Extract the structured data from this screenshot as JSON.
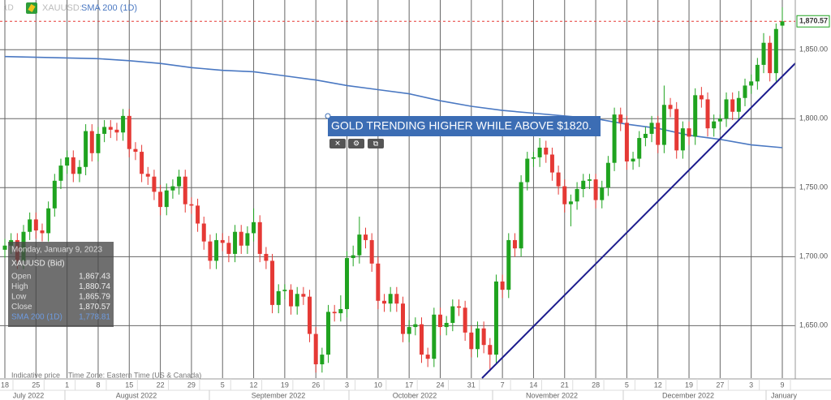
{
  "chart_data": {
    "type": "candlestick",
    "header": {
      "interval": "1D",
      "symbol": "XAUUSD:",
      "indicator": "SMA 200 (1D)"
    },
    "annotation": "GOLD TRENDING HIGHER WHILE ABOVE $1820.",
    "up_color": "#1fa31f",
    "down_color": "#e53935",
    "ylim": [
      1612,
      1886
    ],
    "yticks": [
      {
        "value": 1650,
        "label": "1,650.00"
      },
      {
        "value": 1700,
        "label": "1,700.00"
      },
      {
        "value": 1750,
        "label": "1,750.00"
      },
      {
        "value": 1800,
        "label": "1,800.00"
      },
      {
        "value": 1850,
        "label": "1,850.00"
      }
    ],
    "grid": true,
    "x_tick_labels": [
      "18",
      "25",
      "1",
      "8",
      "15",
      "22",
      "29",
      "5",
      "12",
      "19",
      "26",
      "3",
      "10",
      "17",
      "24",
      "31",
      "7",
      "14",
      "21",
      "28",
      "5",
      "12",
      "19",
      "27",
      "3",
      "9"
    ],
    "months": [
      "July 2022",
      "August 2022",
      "September 2022",
      "October 2022",
      "November 2022",
      "December 2022",
      "January"
    ],
    "candles": [
      [
        1705,
        1713,
        1699,
        1708
      ],
      [
        1708,
        1717,
        1702,
        1712
      ],
      [
        1712,
        1717,
        1691,
        1697
      ],
      [
        1697,
        1723,
        1691,
        1718
      ],
      [
        1718,
        1732,
        1712,
        1727
      ],
      [
        1727,
        1732,
        1713,
        1719
      ],
      [
        1719,
        1724,
        1711,
        1717
      ],
      [
        1717,
        1740,
        1711,
        1735
      ],
      [
        1735,
        1760,
        1729,
        1755
      ],
      [
        1755,
        1771,
        1749,
        1766
      ],
      [
        1766,
        1777,
        1760,
        1772
      ],
      [
        1772,
        1777,
        1754,
        1760
      ],
      [
        1760,
        1770,
        1754,
        1765
      ],
      [
        1765,
        1796,
        1759,
        1791
      ],
      [
        1791,
        1796,
        1769,
        1775
      ],
      [
        1775,
        1794,
        1769,
        1789
      ],
      [
        1789,
        1799,
        1783,
        1794
      ],
      [
        1794,
        1799,
        1786,
        1792
      ],
      [
        1792,
        1797,
        1784,
        1790
      ],
      [
        1790,
        1807,
        1784,
        1802
      ],
      [
        1802,
        1807,
        1772,
        1778
      ],
      [
        1778,
        1783,
        1770,
        1776
      ],
      [
        1776,
        1781,
        1754,
        1760
      ],
      [
        1760,
        1765,
        1752,
        1758
      ],
      [
        1758,
        1763,
        1741,
        1747
      ],
      [
        1747,
        1752,
        1730,
        1736
      ],
      [
        1736,
        1753,
        1730,
        1748
      ],
      [
        1748,
        1756,
        1742,
        1751
      ],
      [
        1751,
        1763,
        1745,
        1758
      ],
      [
        1758,
        1763,
        1732,
        1738
      ],
      [
        1738,
        1743,
        1731,
        1737
      ],
      [
        1737,
        1742,
        1718,
        1724
      ],
      [
        1724,
        1729,
        1705,
        1711
      ],
      [
        1711,
        1716,
        1691,
        1697
      ],
      [
        1697,
        1717,
        1691,
        1712
      ],
      [
        1712,
        1717,
        1704,
        1710
      ],
      [
        1710,
        1715,
        1696,
        1702
      ],
      [
        1702,
        1723,
        1696,
        1718
      ],
      [
        1718,
        1723,
        1702,
        1708
      ],
      [
        1708,
        1722,
        1702,
        1717
      ],
      [
        1717,
        1735,
        1711,
        1725
      ],
      [
        1725,
        1730,
        1696,
        1702
      ],
      [
        1702,
        1707,
        1691,
        1697
      ],
      [
        1697,
        1702,
        1659,
        1665
      ],
      [
        1665,
        1680,
        1659,
        1675
      ],
      [
        1675,
        1680,
        1669,
        1676
      ],
      [
        1676,
        1680,
        1658,
        1664
      ],
      [
        1664,
        1678,
        1658,
        1673
      ],
      [
        1673,
        1678,
        1665,
        1671
      ],
      [
        1671,
        1676,
        1638,
        1644
      ],
      [
        1644,
        1649,
        1616,
        1622
      ],
      [
        1622,
        1634,
        1616,
        1629
      ],
      [
        1629,
        1665,
        1623,
        1660
      ],
      [
        1660,
        1665,
        1653,
        1659
      ],
      [
        1659,
        1672,
        1653,
        1662
      ],
      [
        1662,
        1704,
        1656,
        1699
      ],
      [
        1699,
        1708,
        1693,
        1701
      ],
      [
        1701,
        1729,
        1695,
        1716
      ],
      [
        1716,
        1721,
        1706,
        1712
      ],
      [
        1712,
        1717,
        1689,
        1695
      ],
      [
        1695,
        1700,
        1662,
        1668
      ],
      [
        1668,
        1673,
        1660,
        1666
      ],
      [
        1666,
        1678,
        1660,
        1673
      ],
      [
        1673,
        1678,
        1660,
        1666
      ],
      [
        1666,
        1671,
        1638,
        1644
      ],
      [
        1644,
        1654,
        1638,
        1649
      ],
      [
        1649,
        1656,
        1643,
        1651
      ],
      [
        1651,
        1656,
        1623,
        1629
      ],
      [
        1629,
        1634,
        1620,
        1626
      ],
      [
        1626,
        1663,
        1620,
        1658
      ],
      [
        1658,
        1663,
        1643,
        1649
      ],
      [
        1649,
        1657,
        1643,
        1652
      ],
      [
        1652,
        1669,
        1646,
        1664
      ],
      [
        1664,
        1669,
        1657,
        1663
      ],
      [
        1663,
        1668,
        1639,
        1645
      ],
      [
        1645,
        1650,
        1627,
        1633
      ],
      [
        1633,
        1653,
        1627,
        1648
      ],
      [
        1648,
        1653,
        1630,
        1636
      ],
      [
        1636,
        1641,
        1617,
        1629
      ],
      [
        1629,
        1687,
        1623,
        1682
      ],
      [
        1682,
        1687,
        1670,
        1676
      ],
      [
        1676,
        1717,
        1670,
        1712
      ],
      [
        1712,
        1717,
        1700,
        1706
      ],
      [
        1706,
        1759,
        1700,
        1754
      ],
      [
        1754,
        1776,
        1748,
        1771
      ],
      [
        1771,
        1776,
        1765,
        1772
      ],
      [
        1772,
        1786,
        1765,
        1779
      ],
      [
        1779,
        1784,
        1768,
        1774
      ],
      [
        1774,
        1779,
        1755,
        1761
      ],
      [
        1761,
        1766,
        1745,
        1751
      ],
      [
        1751,
        1756,
        1732,
        1738
      ],
      [
        1738,
        1745,
        1722,
        1740
      ],
      [
        1740,
        1754,
        1734,
        1749
      ],
      [
        1749,
        1760,
        1743,
        1755
      ],
      [
        1755,
        1760,
        1749,
        1756
      ],
      [
        1756,
        1760,
        1735,
        1741
      ],
      [
        1741,
        1755,
        1735,
        1750
      ],
      [
        1750,
        1773,
        1744,
        1768
      ],
      [
        1768,
        1808,
        1762,
        1803
      ],
      [
        1803,
        1808,
        1791,
        1797
      ],
      [
        1797,
        1802,
        1763,
        1769
      ],
      [
        1769,
        1776,
        1763,
        1771
      ],
      [
        1771,
        1791,
        1765,
        1786
      ],
      [
        1786,
        1794,
        1780,
        1789
      ],
      [
        1789,
        1802,
        1783,
        1797
      ],
      [
        1797,
        1802,
        1775,
        1781
      ],
      [
        1781,
        1824,
        1775,
        1810
      ],
      [
        1810,
        1815,
        1801,
        1807
      ],
      [
        1807,
        1812,
        1771,
        1777
      ],
      [
        1777,
        1798,
        1771,
        1793
      ],
      [
        1793,
        1798,
        1781,
        1787
      ],
      [
        1787,
        1822,
        1781,
        1817
      ],
      [
        1817,
        1823,
        1808,
        1814
      ],
      [
        1814,
        1819,
        1787,
        1793
      ],
      [
        1793,
        1803,
        1787,
        1798
      ],
      [
        1798,
        1803,
        1792,
        1800
      ],
      [
        1800,
        1819,
        1794,
        1814
      ],
      [
        1814,
        1819,
        1799,
        1805
      ],
      [
        1805,
        1820,
        1799,
        1815
      ],
      [
        1815,
        1829,
        1809,
        1824
      ],
      [
        1824,
        1832,
        1818,
        1827
      ],
      [
        1827,
        1844,
        1821,
        1839
      ],
      [
        1839,
        1862,
        1833,
        1855
      ],
      [
        1855,
        1860,
        1827,
        1833
      ],
      [
        1833,
        1869,
        1827,
        1865
      ],
      [
        1867.43,
        1880.74,
        1865.79,
        1870.57
      ]
    ],
    "last_price_label": "1,870.57",
    "sma": {
      "name": "SMA 200 (1D)",
      "color": "#4a78c2",
      "values": [
        1845,
        1844.5,
        1844,
        1843.5,
        1842,
        1840,
        1837,
        1835,
        1834,
        1831,
        1828,
        1824,
        1821,
        1818,
        1813,
        1809,
        1806,
        1804,
        1802,
        1800,
        1796,
        1793,
        1788,
        1785,
        1781,
        1779
      ]
    },
    "tooltip": {
      "date": "Monday, January 9, 2023",
      "symbol": "XAUUSD (Bid)",
      "rows": [
        [
          "Open",
          "1,867.43"
        ],
        [
          "High",
          "1,880.74"
        ],
        [
          "Low",
          "1,865.79"
        ],
        [
          "Close",
          "1,870.57"
        ],
        [
          "SMA 200 (1D)",
          "1,778.81"
        ]
      ]
    },
    "footer": {
      "note": "Indicative price",
      "timezone": "Time Zone: Eastern Time (US & Canada)"
    }
  }
}
